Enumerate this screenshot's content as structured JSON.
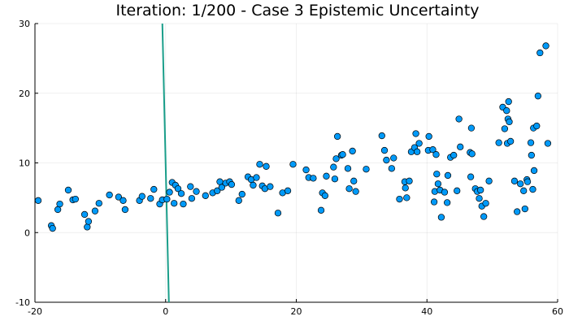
{
  "chart_data": {
    "type": "scatter",
    "title": "Iteration: 1/200 - Case 3 Epistemic Uncertainty",
    "xlabel": "",
    "ylabel": "",
    "xlim": [
      -20,
      60
    ],
    "ylim": [
      -10,
      30
    ],
    "x_ticks": [
      -20,
      0,
      20,
      40,
      60
    ],
    "y_ticks": [
      -10,
      0,
      10,
      20,
      30
    ],
    "grid": true,
    "legend": "none",
    "colors": {
      "points": "#009af9",
      "line": "#1a9e8a",
      "axis": "#000000"
    },
    "line": {
      "points": [
        [
          -0.5,
          30
        ],
        [
          0.5,
          -10
        ]
      ]
    },
    "points": [
      [
        -19.5,
        4.6
      ],
      [
        -17.5,
        1.0
      ],
      [
        -17.3,
        0.6
      ],
      [
        -16.5,
        3.3
      ],
      [
        -16.2,
        4.1
      ],
      [
        -14.9,
        6.1
      ],
      [
        -14.2,
        4.7
      ],
      [
        -13.8,
        4.8
      ],
      [
        -12.4,
        2.6
      ],
      [
        -12.0,
        0.8
      ],
      [
        -11.8,
        1.6
      ],
      [
        -10.8,
        3.1
      ],
      [
        -10.2,
        4.2
      ],
      [
        -8.6,
        5.4
      ],
      [
        -7.2,
        5.1
      ],
      [
        -6.5,
        4.6
      ],
      [
        -6.2,
        3.3
      ],
      [
        -4.0,
        4.6
      ],
      [
        -3.6,
        5.2
      ],
      [
        -2.3,
        4.9
      ],
      [
        -1.8,
        6.2
      ],
      [
        -0.9,
        4.1
      ],
      [
        -0.5,
        4.7
      ],
      [
        0.2,
        4.8
      ],
      [
        0.6,
        5.8
      ],
      [
        1.0,
        7.2
      ],
      [
        1.3,
        4.2
      ],
      [
        1.5,
        6.8
      ],
      [
        1.9,
        6.3
      ],
      [
        2.4,
        5.6
      ],
      [
        2.7,
        4.1
      ],
      [
        3.8,
        6.6
      ],
      [
        4.0,
        4.9
      ],
      [
        4.7,
        5.9
      ],
      [
        6.1,
        5.3
      ],
      [
        7.2,
        5.7
      ],
      [
        7.9,
        6.0
      ],
      [
        8.3,
        7.3
      ],
      [
        8.6,
        6.5
      ],
      [
        9.2,
        7.1
      ],
      [
        9.8,
        7.3
      ],
      [
        10.1,
        6.9
      ],
      [
        11.2,
        4.6
      ],
      [
        11.7,
        5.5
      ],
      [
        12.6,
        8.0
      ],
      [
        13.1,
        7.6
      ],
      [
        13.4,
        6.8
      ],
      [
        13.9,
        7.9
      ],
      [
        14.4,
        9.8
      ],
      [
        14.8,
        6.7
      ],
      [
        15.2,
        6.3
      ],
      [
        15.4,
        9.5
      ],
      [
        16.0,
        6.6
      ],
      [
        17.2,
        2.8
      ],
      [
        17.9,
        5.7
      ],
      [
        18.7,
        6.0
      ],
      [
        19.5,
        9.8
      ],
      [
        21.5,
        9.0
      ],
      [
        21.9,
        7.9
      ],
      [
        22.6,
        7.8
      ],
      [
        23.8,
        3.2
      ],
      [
        24.0,
        5.7
      ],
      [
        24.4,
        5.3
      ],
      [
        24.6,
        8.1
      ],
      [
        25.7,
        9.4
      ],
      [
        25.9,
        7.7
      ],
      [
        26.1,
        10.6
      ],
      [
        26.3,
        13.8
      ],
      [
        26.9,
        11.1
      ],
      [
        27.1,
        11.2
      ],
      [
        27.9,
        9.2
      ],
      [
        28.1,
        6.3
      ],
      [
        28.6,
        11.7
      ],
      [
        28.8,
        7.4
      ],
      [
        29.1,
        5.9
      ],
      [
        30.7,
        9.1
      ],
      [
        33.1,
        13.9
      ],
      [
        33.5,
        11.8
      ],
      [
        33.8,
        10.4
      ],
      [
        34.6,
        9.2
      ],
      [
        34.9,
        10.7
      ],
      [
        35.8,
        4.8
      ],
      [
        36.6,
        7.3
      ],
      [
        36.7,
        6.4
      ],
      [
        36.9,
        5.0
      ],
      [
        37.3,
        7.4
      ],
      [
        37.6,
        11.6
      ],
      [
        38.1,
        12.2
      ],
      [
        38.3,
        14.2
      ],
      [
        38.5,
        11.6
      ],
      [
        38.8,
        12.8
      ],
      [
        40.2,
        11.8
      ],
      [
        40.3,
        13.8
      ],
      [
        40.9,
        11.9
      ],
      [
        41.1,
        4.4
      ],
      [
        41.2,
        5.9
      ],
      [
        41.4,
        11.2
      ],
      [
        41.5,
        8.4
      ],
      [
        41.7,
        7.0
      ],
      [
        42.0,
        6.1
      ],
      [
        42.2,
        2.2
      ],
      [
        42.7,
        5.8
      ],
      [
        43.1,
        4.3
      ],
      [
        43.2,
        8.2
      ],
      [
        43.6,
        10.8
      ],
      [
        44.1,
        11.1
      ],
      [
        44.6,
        6.0
      ],
      [
        44.9,
        16.3
      ],
      [
        45.1,
        12.3
      ],
      [
        46.6,
        11.5
      ],
      [
        46.7,
        8.0
      ],
      [
        46.8,
        15.0
      ],
      [
        46.9,
        11.3
      ],
      [
        47.4,
        6.3
      ],
      [
        47.7,
        5.9
      ],
      [
        48.0,
        4.9
      ],
      [
        48.2,
        6.1
      ],
      [
        48.4,
        3.8
      ],
      [
        48.7,
        2.3
      ],
      [
        49.0,
        4.2
      ],
      [
        49.5,
        7.4
      ],
      [
        51.0,
        12.9
      ],
      [
        51.6,
        18.0
      ],
      [
        51.9,
        14.9
      ],
      [
        52.2,
        17.5
      ],
      [
        52.3,
        12.8
      ],
      [
        52.4,
        16.3
      ],
      [
        52.6,
        15.9
      ],
      [
        52.8,
        13.1
      ],
      [
        52.5,
        18.8
      ],
      [
        53.4,
        7.4
      ],
      [
        53.8,
        3.0
      ],
      [
        54.3,
        7.0
      ],
      [
        54.8,
        6.0
      ],
      [
        55.0,
        3.4
      ],
      [
        55.3,
        7.6
      ],
      [
        55.4,
        7.3
      ],
      [
        55.9,
        12.9
      ],
      [
        56.0,
        11.1
      ],
      [
        56.2,
        6.2
      ],
      [
        56.3,
        15.0
      ],
      [
        56.4,
        8.9
      ],
      [
        56.8,
        15.3
      ],
      [
        57.0,
        19.6
      ],
      [
        57.3,
        25.8
      ],
      [
        58.2,
        26.8
      ],
      [
        58.5,
        12.8
      ]
    ]
  }
}
